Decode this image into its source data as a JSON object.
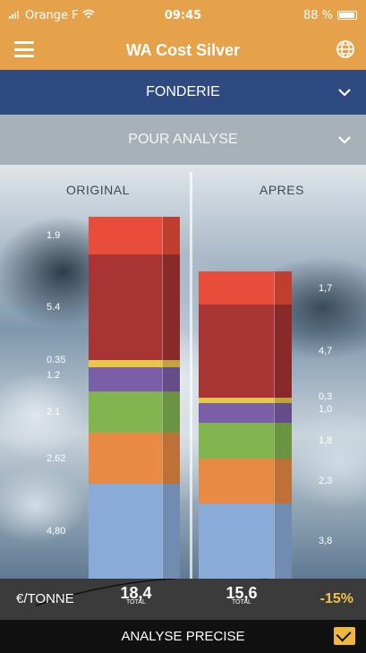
{
  "status": {
    "carrier": "Orange F",
    "time": "09:45",
    "battery": "88 %"
  },
  "header": {
    "title": "WA Cost Silver",
    "menu_icon": "hamburger-menu-icon",
    "globe_icon": "globe-icon"
  },
  "selectors": {
    "first": "FONDERIE",
    "second": "POUR ANALYSE"
  },
  "chart_data": {
    "type": "bar",
    "stacked": true,
    "categories": [
      "ORIGINAL",
      "APRES"
    ],
    "series": [
      {
        "color": "#8aaad8",
        "values": [
          4.8,
          3.8
        ]
      },
      {
        "color": "#e88a44",
        "values": [
          2.62,
          2.3
        ]
      },
      {
        "color": "#82b550",
        "values": [
          2.1,
          1.8
        ]
      },
      {
        "color": "#7b5ea8",
        "values": [
          1.2,
          1.0
        ]
      },
      {
        "color": "#e8c84a",
        "values": [
          0.35,
          0.3
        ]
      },
      {
        "color": "#a83434",
        "values": [
          5.4,
          4.7
        ]
      },
      {
        "color": "#e84c3a",
        "values": [
          1.9,
          1.7
        ]
      }
    ],
    "value_labels": [
      [
        "4,80",
        "2.62",
        "2.1",
        "1.2",
        "0.35",
        "5.4",
        "1.9"
      ],
      [
        "3,8",
        "2,3",
        "1,8",
        "1,0",
        "0,3",
        "4,7",
        "1,7"
      ]
    ],
    "totals": [
      "18,4",
      "15,6"
    ],
    "total_caption": "TOTAL",
    "unit": "€/TONNE",
    "change": "-15%"
  },
  "action_label": "ANALYSE PRECISE",
  "mail_icon": "mail-icon"
}
